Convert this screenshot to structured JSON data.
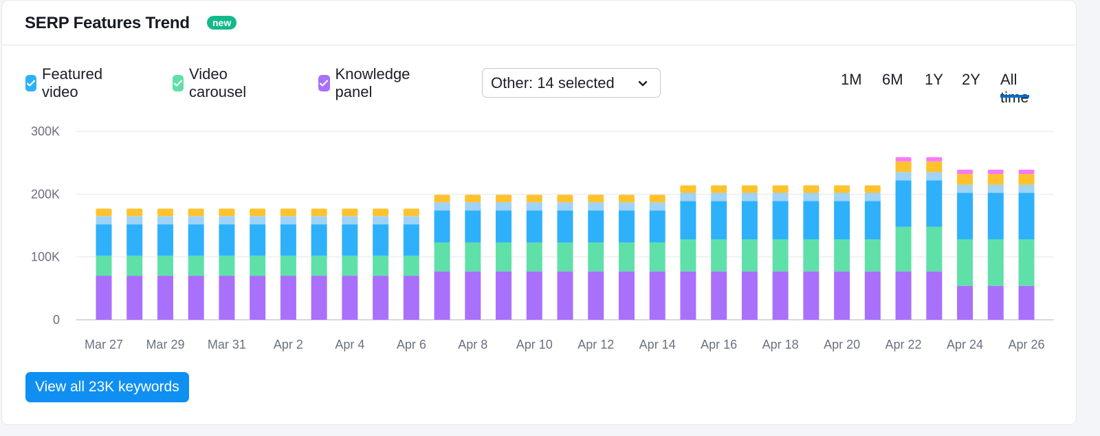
{
  "header": {
    "title": "SERP Features Trend",
    "badge": "new"
  },
  "legend": {
    "items": [
      {
        "label": "Featured video",
        "color": "#2eb1fa"
      },
      {
        "label": "Video carousel",
        "color": "#5fe0a8"
      },
      {
        "label": "Knowledge panel",
        "color": "#a970fb"
      }
    ]
  },
  "dropdown": {
    "label": "Other: 14 selected"
  },
  "time_ranges": {
    "items": [
      "1M",
      "6M",
      "1Y",
      "2Y",
      "All time"
    ],
    "active": "All time"
  },
  "cta": {
    "label": "View all 23K keywords"
  },
  "chart_data": {
    "type": "bar",
    "stacked": true,
    "ylim": [
      0,
      300000
    ],
    "y_ticks": [
      "300K",
      "200K",
      "100K",
      "0"
    ],
    "x_tick_labels": [
      "Mar 27",
      "Mar 29",
      "Mar 31",
      "Apr 2",
      "Apr 4",
      "Apr 6",
      "Apr 8",
      "Apr 10",
      "Apr 12",
      "Apr 14",
      "Apr 16",
      "Apr 18",
      "Apr 20",
      "Apr 22",
      "Apr 24",
      "Apr 26"
    ],
    "categories": [
      "Mar 27",
      "Mar 28",
      "Mar 29",
      "Mar 30",
      "Mar 31",
      "Apr 1",
      "Apr 2",
      "Apr 3",
      "Apr 4",
      "Apr 5",
      "Apr 6",
      "Apr 7",
      "Apr 8",
      "Apr 9",
      "Apr 10",
      "Apr 11",
      "Apr 12",
      "Apr 13",
      "Apr 14",
      "Apr 15",
      "Apr 16",
      "Apr 17",
      "Apr 18",
      "Apr 19",
      "Apr 20",
      "Apr 21",
      "Apr 22",
      "Apr 23",
      "Apr 24",
      "Apr 25",
      "Apr 26"
    ],
    "series": [
      {
        "name": "Knowledge panel",
        "color": "#a970fb",
        "values": [
          70000,
          70000,
          70000,
          70000,
          70000,
          70000,
          70000,
          70000,
          70000,
          70000,
          70000,
          77000,
          77000,
          77000,
          77000,
          77000,
          77000,
          77000,
          77000,
          77000,
          77000,
          77000,
          77000,
          77000,
          77000,
          77000,
          77000,
          77000,
          54000,
          54000,
          54000
        ]
      },
      {
        "name": "Video carousel",
        "color": "#5fe0a8",
        "values": [
          32000,
          32000,
          32000,
          32000,
          32000,
          32000,
          32000,
          32000,
          32000,
          32000,
          32000,
          46000,
          46000,
          46000,
          46000,
          46000,
          46000,
          46000,
          46000,
          51000,
          51000,
          51000,
          51000,
          51000,
          51000,
          51000,
          71000,
          71000,
          74000,
          74000,
          74000
        ]
      },
      {
        "name": "Featured video",
        "color": "#2eb1fa",
        "values": [
          50000,
          50000,
          50000,
          50000,
          50000,
          50000,
          50000,
          50000,
          50000,
          50000,
          50000,
          51000,
          51000,
          51000,
          51000,
          51000,
          51000,
          51000,
          51000,
          61000,
          61000,
          61000,
          61000,
          61000,
          61000,
          61000,
          74000,
          74000,
          74000,
          74000,
          74000
        ]
      },
      {
        "color": "#9fd3f7",
        "values": [
          13000,
          13000,
          13000,
          13000,
          13000,
          13000,
          13000,
          13000,
          13000,
          13000,
          13000,
          13000,
          13000,
          13000,
          13000,
          13000,
          13000,
          13000,
          13000,
          13000,
          13000,
          13000,
          13000,
          13000,
          13000,
          13000,
          13000,
          13000,
          13000,
          13000,
          13000
        ]
      },
      {
        "color": "#fec22d",
        "values": [
          12000,
          12000,
          12000,
          12000,
          12000,
          12000,
          12000,
          12000,
          12000,
          12000,
          12000,
          12000,
          12000,
          12000,
          12000,
          12000,
          12000,
          12000,
          12000,
          12000,
          12000,
          12000,
          12000,
          12000,
          12000,
          12000,
          17000,
          17000,
          17000,
          17000,
          17000
        ]
      },
      {
        "color": "#f37cf4",
        "values": [
          0,
          0,
          0,
          0,
          0,
          0,
          0,
          0,
          0,
          0,
          0,
          0,
          0,
          0,
          0,
          0,
          0,
          0,
          0,
          0,
          0,
          0,
          0,
          0,
          0,
          0,
          7000,
          7000,
          7000,
          7000,
          7000
        ]
      }
    ]
  }
}
